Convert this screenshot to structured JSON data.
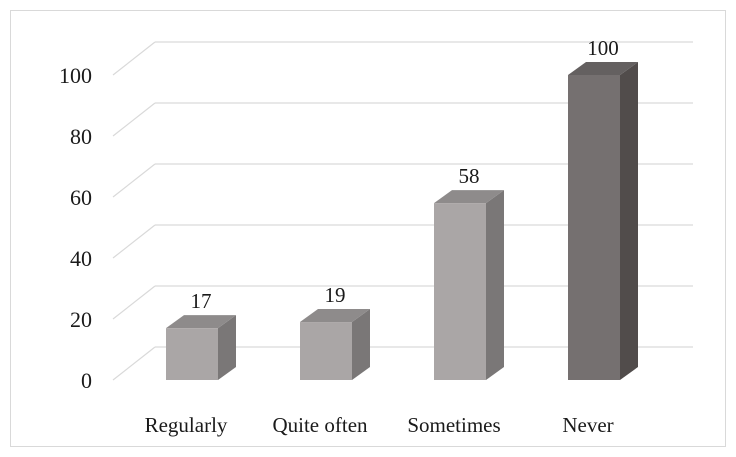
{
  "chart_data": {
    "type": "bar",
    "style": "3d-column",
    "categories": [
      "Regularly",
      "Quite often",
      "Sometimes",
      "Never"
    ],
    "values": [
      17,
      19,
      58,
      100
    ],
    "data_labels": [
      "17",
      "19",
      "58",
      "100"
    ],
    "title": "",
    "xlabel": "",
    "ylabel": "",
    "ylim": [
      0,
      100
    ],
    "yticks": [
      0,
      20,
      40,
      60,
      80,
      100
    ],
    "ytick_labels": [
      "0",
      "20",
      "40",
      "60",
      "80",
      "100"
    ],
    "grid": true,
    "legend": "none",
    "colors": {
      "light_front": "#aaa6a6",
      "light_side": "#7a7777",
      "light_top": "#8e8b8b",
      "dark_front": "#757070",
      "dark_side": "#514c4b",
      "dark_top": "#646060",
      "gridline": "#d9d9d9"
    },
    "bar_shades": [
      "light",
      "light",
      "light",
      "dark"
    ]
  }
}
